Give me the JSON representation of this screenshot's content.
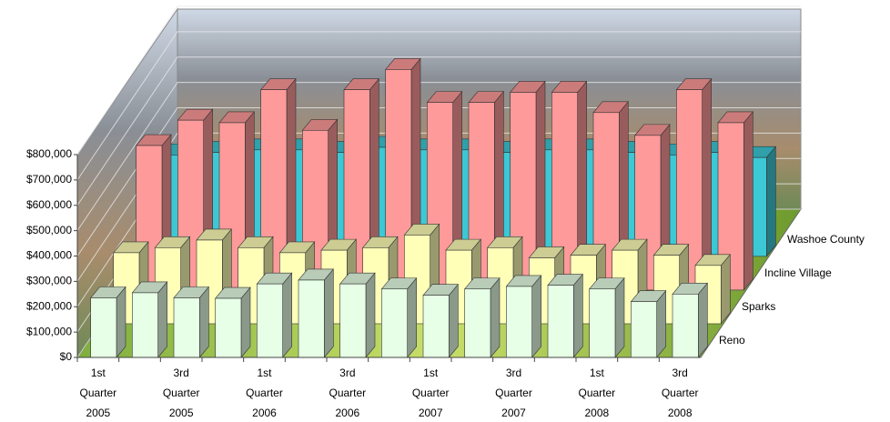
{
  "chart_data": {
    "type": "bar3d",
    "categories": [
      "1st Quarter 2005",
      null,
      "3rd Quarter 2005",
      null,
      "1st Quarter 2006",
      null,
      "3rd Quarter 2006",
      null,
      "1st Quarter 2007",
      null,
      "3rd Quarter 2007",
      null,
      "1st Quarter 2008",
      null,
      "3rd Quarter 2008"
    ],
    "series": [
      {
        "name": "Reno",
        "color": "#e6ffe6",
        "values": [
          235000,
          255000,
          235000,
          233000,
          290000,
          305000,
          290000,
          270000,
          245000,
          270000,
          280000,
          285000,
          270000,
          220000,
          250000
        ]
      },
      {
        "name": "Sparks",
        "color": "#ffffb8",
        "values": [
          280000,
          300000,
          330000,
          300000,
          280000,
          290000,
          300000,
          350000,
          290000,
          300000,
          260000,
          270000,
          290000,
          270000,
          230000
        ]
      },
      {
        "name": "Incline Village",
        "color": "#ff9a9a",
        "values": [
          570000,
          670000,
          660000,
          790000,
          630000,
          790000,
          870000,
          740000,
          740000,
          780000,
          780000,
          700000,
          610000,
          790000,
          660000
        ]
      },
      {
        "name": "Washoe County",
        "color": "#3cc8d4",
        "values": [
          400000,
          410000,
          420000,
          420000,
          410000,
          430000,
          420000,
          420000,
          410000,
          420000,
          420000,
          410000,
          400000,
          410000,
          390000
        ]
      }
    ],
    "ylim": [
      0,
      800000
    ],
    "yticks": [
      {
        "value": 0,
        "label": "$0"
      },
      {
        "value": 100000,
        "label": "$100,000"
      },
      {
        "value": 200000,
        "label": "$200,000"
      },
      {
        "value": 300000,
        "label": "$300,000"
      },
      {
        "value": 400000,
        "label": "$400,000"
      },
      {
        "value": 500000,
        "label": "$500,000"
      },
      {
        "value": 600000,
        "label": "$600,000"
      },
      {
        "value": 700000,
        "label": "$700,000"
      },
      {
        "value": 800000,
        "label": "$800,000"
      }
    ],
    "grid": true
  }
}
